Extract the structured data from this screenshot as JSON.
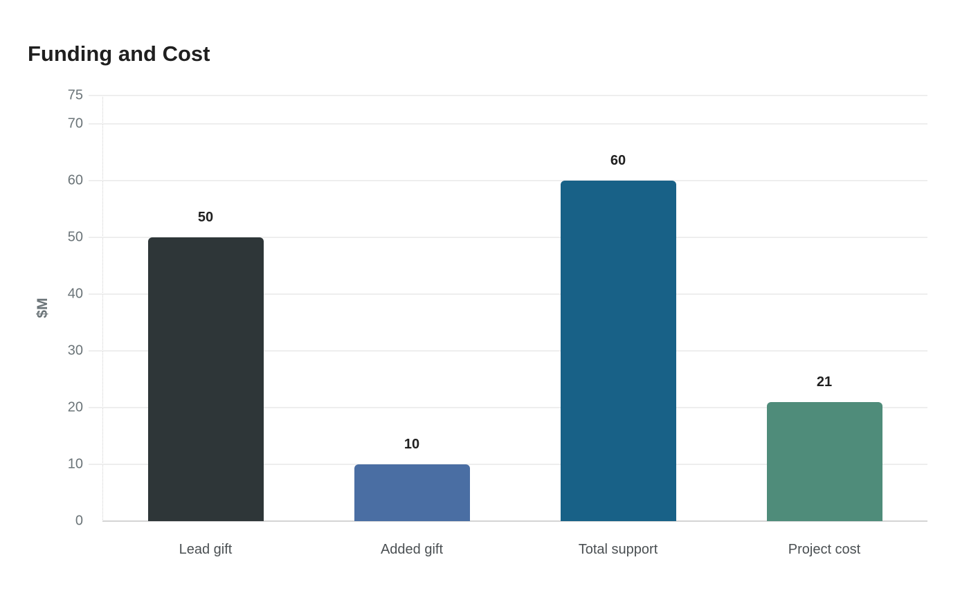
{
  "chart_data": {
    "type": "bar",
    "title": "Funding and Cost",
    "xlabel": "",
    "ylabel": "$M",
    "categories": [
      "Lead gift",
      "Added gift",
      "Total support",
      "Project cost"
    ],
    "values": [
      50,
      10,
      60,
      21
    ],
    "colors": [
      "#2e3638",
      "#4a6ea3",
      "#186187",
      "#4f8c7a"
    ],
    "ylim": [
      0,
      75
    ],
    "yticks": [
      0,
      10,
      20,
      30,
      40,
      50,
      60,
      70,
      75
    ],
    "grid": true,
    "legend": "none",
    "data_labels": [
      "50",
      "10",
      "60",
      "21"
    ]
  }
}
